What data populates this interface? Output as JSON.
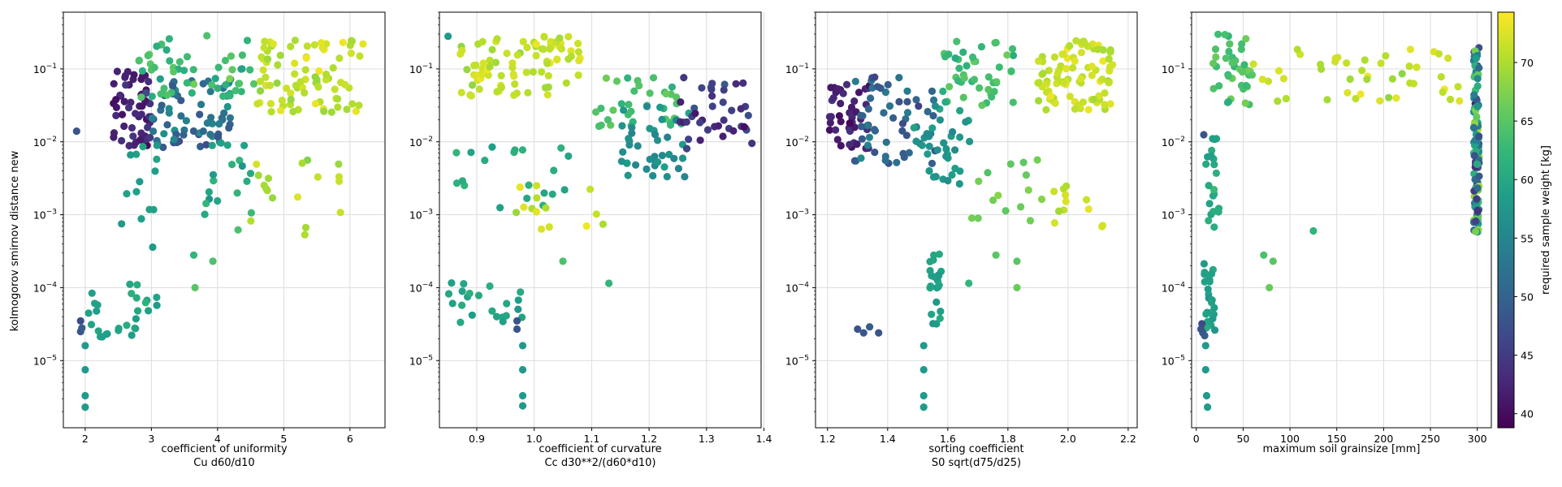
{
  "figure": {
    "ylabel": "kolmogorov smirnov distance new",
    "colorbar": {
      "label": "required sample weight [kg]",
      "range": [
        38.8,
        74.3
      ],
      "ticks": [
        40,
        45,
        50,
        55,
        60,
        65,
        70
      ],
      "colormap": "viridis"
    }
  },
  "chart_data": [
    {
      "type": "scatter",
      "xlabel": "coefficient of uniformity",
      "xlabel2": "Cu  d60/d10",
      "xlim": [
        1.67,
        6.53
      ],
      "xticks": [
        2,
        3,
        4,
        5,
        6
      ],
      "yscale": "log",
      "ylim": [
        1.2e-06,
        0.6
      ],
      "yticks": [
        "10^-5",
        "10^-4",
        "10^-3",
        "10^-2",
        "10^-1"
      ],
      "grid": true,
      "clusters": [
        {
          "x_range": [
            2.4,
            3.0
          ],
          "logy_range": [
            -2.1,
            -1.0
          ],
          "c_range": [
            39,
            45
          ],
          "n": 55
        },
        {
          "x_range": [
            2.9,
            4.2
          ],
          "logy_range": [
            -2.1,
            -1.1
          ],
          "c_range": [
            45,
            58
          ],
          "n": 65
        },
        {
          "x_range": [
            2.8,
            4.6
          ],
          "logy_range": [
            -1.4,
            -0.5
          ],
          "c_range": [
            58,
            68
          ],
          "n": 55
        },
        {
          "x_range": [
            4.6,
            6.2
          ],
          "logy_range": [
            -1.6,
            -0.6
          ],
          "c_range": [
            68,
            74
          ],
          "n": 85
        },
        {
          "x_range": [
            4.5,
            6.0
          ],
          "logy_range": [
            -3.3,
            -2.2
          ],
          "c_range": [
            66,
            73
          ],
          "n": 18
        },
        {
          "x_range": [
            3.8,
            4.7
          ],
          "logy_range": [
            -3.0,
            -2.0
          ],
          "c_range": [
            56,
            64
          ],
          "n": 18
        },
        {
          "x_range": [
            2.0,
            3.1
          ],
          "logy_range": [
            -4.7,
            -3.9
          ],
          "c_range": [
            57,
            62
          ],
          "n": 28
        },
        {
          "x_range": [
            2.5,
            3.1
          ],
          "logy_range": [
            -3.2,
            -2.0
          ],
          "c_range": [
            57,
            61
          ],
          "n": 12
        }
      ],
      "points": [
        {
          "x": 1.87,
          "y": 0.014,
          "c": 48
        },
        {
          "x": 1.93,
          "y": 2.5e-05,
          "c": 48
        },
        {
          "x": 1.93,
          "y": 3.5e-05,
          "c": 47
        },
        {
          "x": 1.95,
          "y": 2.8e-05,
          "c": 49
        },
        {
          "x": 2.0,
          "y": 1.6e-05,
          "c": 58
        },
        {
          "x": 2.0,
          "y": 7.5e-06,
          "c": 58
        },
        {
          "x": 2.0,
          "y": 3.3e-06,
          "c": 58
        },
        {
          "x": 2.0,
          "y": 2.3e-06,
          "c": 58
        },
        {
          "x": 3.66,
          "y": 0.0001,
          "c": 65
        },
        {
          "x": 3.64,
          "y": 0.00028,
          "c": 62
        },
        {
          "x": 3.93,
          "y": 0.00023,
          "c": 64
        },
        {
          "x": 4.31,
          "y": 0.00062,
          "c": 64
        },
        {
          "x": 3.02,
          "y": 0.00036,
          "c": 58
        },
        {
          "x": 2.55,
          "y": 0.00075,
          "c": 58
        }
      ]
    },
    {
      "type": "scatter",
      "xlabel": "coefficient of curvature",
      "xlabel2": "Cc  d30**2/(d60*d10)",
      "xlim": [
        0.835,
        1.395
      ],
      "xticks": [
        0.9,
        1.0,
        1.1,
        1.2,
        1.3,
        1.4
      ],
      "yscale": "log",
      "ylim": [
        1.2e-06,
        0.6
      ],
      "grid": true,
      "clusters": [
        {
          "x_range": [
            0.87,
            1.08
          ],
          "logy_range": [
            -1.4,
            -0.55
          ],
          "c_range": [
            68,
            74
          ],
          "n": 85
        },
        {
          "x_range": [
            1.1,
            1.26
          ],
          "logy_range": [
            -1.8,
            -1.1
          ],
          "c_range": [
            60,
            67
          ],
          "n": 35
        },
        {
          "x_range": [
            1.15,
            1.27
          ],
          "logy_range": [
            -2.5,
            -1.5
          ],
          "c_range": [
            54,
            60
          ],
          "n": 40
        },
        {
          "x_range": [
            1.25,
            1.38
          ],
          "logy_range": [
            -2.1,
            -1.1
          ],
          "c_range": [
            39,
            49
          ],
          "n": 40
        },
        {
          "x_range": [
            0.85,
            0.98
          ],
          "logy_range": [
            -4.5,
            -3.9
          ],
          "c_range": [
            57,
            62
          ],
          "n": 22
        },
        {
          "x_range": [
            0.86,
            1.06
          ],
          "logy_range": [
            -3.0,
            -2.0
          ],
          "c_range": [
            58,
            63
          ],
          "n": 20
        },
        {
          "x_range": [
            0.96,
            1.12
          ],
          "logy_range": [
            -3.2,
            -2.6
          ],
          "c_range": [
            68,
            74
          ],
          "n": 14
        }
      ],
      "points": [
        {
          "x": 0.97,
          "y": 3.5e-05,
          "c": 48
        },
        {
          "x": 0.97,
          "y": 2.7e-05,
          "c": 48
        },
        {
          "x": 0.98,
          "y": 1.6e-05,
          "c": 58
        },
        {
          "x": 0.98,
          "y": 7.5e-06,
          "c": 58
        },
        {
          "x": 0.98,
          "y": 3.3e-06,
          "c": 58
        },
        {
          "x": 0.98,
          "y": 2.4e-06,
          "c": 58
        },
        {
          "x": 1.13,
          "y": 0.000115,
          "c": 62
        },
        {
          "x": 1.05,
          "y": 0.00023,
          "c": 64
        },
        {
          "x": 0.85,
          "y": 0.28,
          "c": 58
        }
      ]
    },
    {
      "type": "scatter",
      "xlabel": "sorting coefficient",
      "xlabel2": "S0 sqrt(d75/d25)",
      "xlim": [
        1.16,
        2.23
      ],
      "xticks": [
        1.2,
        1.4,
        1.6,
        1.8,
        2.0,
        2.2
      ],
      "yscale": "log",
      "ylim": [
        1.2e-06,
        0.6
      ],
      "grid": true,
      "clusters": [
        {
          "x_range": [
            1.2,
            1.34
          ],
          "logy_range": [
            -2.1,
            -1.2
          ],
          "c_range": [
            39,
            45
          ],
          "n": 45
        },
        {
          "x_range": [
            1.28,
            1.56
          ],
          "logy_range": [
            -2.3,
            -1.1
          ],
          "c_range": [
            45,
            56
          ],
          "n": 55
        },
        {
          "x_range": [
            1.48,
            1.68
          ],
          "logy_range": [
            -2.6,
            -1.5
          ],
          "c_range": [
            55,
            60
          ],
          "n": 35
        },
        {
          "x_range": [
            1.58,
            1.82
          ],
          "logy_range": [
            -1.5,
            -0.6
          ],
          "c_range": [
            60,
            67
          ],
          "n": 45
        },
        {
          "x_range": [
            1.9,
            2.15
          ],
          "logy_range": [
            -1.6,
            -0.6
          ],
          "c_range": [
            69,
            74
          ],
          "n": 90
        },
        {
          "x_range": [
            1.68,
            1.92
          ],
          "logy_range": [
            -3.1,
            -2.2
          ],
          "c_range": [
            64,
            69
          ],
          "n": 15
        },
        {
          "x_range": [
            1.95,
            2.12
          ],
          "logy_range": [
            -3.2,
            -2.6
          ],
          "c_range": [
            69,
            74
          ],
          "n": 12
        },
        {
          "x_range": [
            1.54,
            1.58
          ],
          "logy_range": [
            -4.5,
            -3.5
          ],
          "c_range": [
            57,
            61
          ],
          "n": 22
        }
      ],
      "points": [
        {
          "x": 1.3,
          "y": 2.7e-05,
          "c": 48
        },
        {
          "x": 1.32,
          "y": 2.4e-05,
          "c": 48
        },
        {
          "x": 1.34,
          "y": 2.9e-05,
          "c": 49
        },
        {
          "x": 1.37,
          "y": 2.4e-05,
          "c": 48
        },
        {
          "x": 1.52,
          "y": 1.6e-05,
          "c": 58
        },
        {
          "x": 1.52,
          "y": 7.5e-06,
          "c": 58
        },
        {
          "x": 1.52,
          "y": 3.3e-06,
          "c": 58
        },
        {
          "x": 1.52,
          "y": 2.3e-06,
          "c": 58
        },
        {
          "x": 1.67,
          "y": 0.000115,
          "c": 62
        },
        {
          "x": 1.76,
          "y": 0.00028,
          "c": 65
        },
        {
          "x": 1.83,
          "y": 0.00023,
          "c": 65
        },
        {
          "x": 1.83,
          "y": 0.0001,
          "c": 66
        }
      ]
    },
    {
      "type": "scatter",
      "xlabel": "maximum soil grainsize [mm]",
      "xlabel2": "",
      "xlim": [
        -5,
        315
      ],
      "xticks": [
        0,
        50,
        100,
        150,
        200,
        250,
        300
      ],
      "yscale": "log",
      "ylim": [
        1.2e-06,
        0.6
      ],
      "grid": true,
      "clusters": [
        {
          "x_range": [
            296,
            302
          ],
          "logy_range": [
            -3.25,
            -0.7
          ],
          "c_range": [
            39,
            74
          ],
          "n": 110
        },
        {
          "x_range": [
            18,
            60
          ],
          "logy_range": [
            -1.5,
            -0.5
          ],
          "c_range": [
            60,
            68
          ],
          "n": 40
        },
        {
          "x_range": [
            60,
            290
          ],
          "logy_range": [
            -1.5,
            -0.65
          ],
          "c_range": [
            68,
            74
          ],
          "n": 45
        },
        {
          "x_range": [
            8,
            20
          ],
          "logy_range": [
            -4.6,
            -3.6
          ],
          "c_range": [
            57,
            61
          ],
          "n": 25
        },
        {
          "x_range": [
            10,
            25
          ],
          "logy_range": [
            -3.2,
            -1.8
          ],
          "c_range": [
            58,
            63
          ],
          "n": 22
        }
      ],
      "points": [
        {
          "x": 5,
          "y": 2.7e-05,
          "c": 48
        },
        {
          "x": 6,
          "y": 3.2e-05,
          "c": 47
        },
        {
          "x": 7,
          "y": 2.4e-05,
          "c": 48
        },
        {
          "x": 8,
          "y": 0.0125,
          "c": 48
        },
        {
          "x": 9,
          "y": 2.2e-05,
          "c": 49
        },
        {
          "x": 10,
          "y": 1.6e-05,
          "c": 58
        },
        {
          "x": 10,
          "y": 7.5e-06,
          "c": 58
        },
        {
          "x": 11,
          "y": 3.3e-06,
          "c": 58
        },
        {
          "x": 12,
          "y": 2.3e-06,
          "c": 58
        },
        {
          "x": 125,
          "y": 0.0006,
          "c": 62
        },
        {
          "x": 72,
          "y": 0.00028,
          "c": 64
        },
        {
          "x": 82,
          "y": 0.00023,
          "c": 65
        },
        {
          "x": 78,
          "y": 0.0001,
          "c": 66
        }
      ]
    }
  ]
}
